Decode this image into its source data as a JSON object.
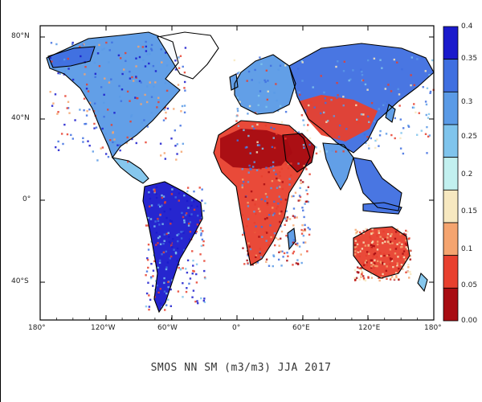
{
  "map": {
    "caption": "SMOS NN SM (m3/m3) JJA 2017",
    "variable": "soil moisture",
    "units": "m3/m3",
    "lon_ticks": [
      "180°",
      "120°W",
      "60°W",
      "0°",
      "60°E",
      "120°E",
      "180°"
    ],
    "lat_ticks": [
      "80°N",
      "40°N",
      "0°",
      "40°S"
    ],
    "colorbar": {
      "labels": [
        "0.4",
        "0.35",
        "0.3",
        "0.25",
        "0.2",
        "0.15",
        "0.1",
        "0.05",
        "0.00"
      ],
      "colors_top_to_bottom": [
        "#1a1acc",
        "#3f6fe0",
        "#5a9ae6",
        "#7fc4ec",
        "#c2f0ef",
        "#f7e8c0",
        "#f5a46f",
        "#e8402e",
        "#a80c12"
      ]
    },
    "colors": {
      "desert": "#a80c12",
      "wet": "#2a4fd6",
      "coast": "#000000"
    }
  }
}
